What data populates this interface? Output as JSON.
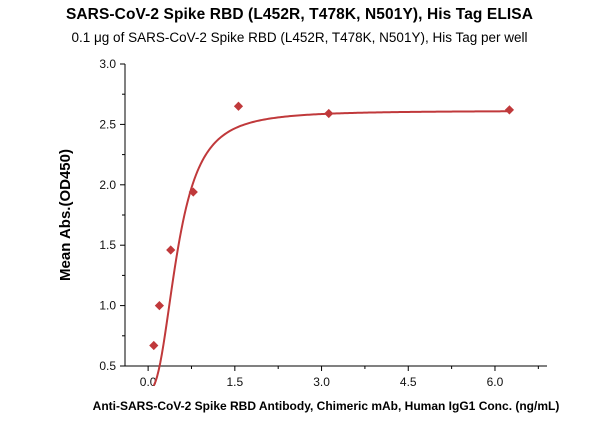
{
  "chart_data": {
    "type": "scatter",
    "title": "SARS-CoV-2 Spike RBD (L452R, T478K, N501Y), His Tag ELISA",
    "subtitle": "0.1 μg of SARS-CoV-2 Spike RBD (L452R, T478K, N501Y), His Tag per well",
    "xlabel": "Anti-SARS-CoV-2 Spike RBD Antibody, Chimeric mAb, Human IgG1 Conc. (ng/mL)",
    "ylabel": "Mean Abs.(OD450)",
    "xlim": [
      -0.4,
      6.9
    ],
    "ylim": [
      0.5,
      3.0
    ],
    "xticks": [
      "0.0",
      "1.5",
      "3.0",
      "4.5",
      "6.0"
    ],
    "yticks": [
      "0.5",
      "1.0",
      "1.5",
      "2.0",
      "2.5",
      "3.0"
    ],
    "grid": false,
    "series": [
      {
        "x": [
          0.098,
          0.195,
          0.391,
          0.781,
          1.563,
          3.125,
          6.25
        ],
        "y": [
          0.67,
          1.0,
          1.46,
          1.94,
          2.65,
          2.59,
          2.62
        ],
        "marker": "diamond",
        "fit": "4PL",
        "color": "#c0393b"
      }
    ]
  }
}
